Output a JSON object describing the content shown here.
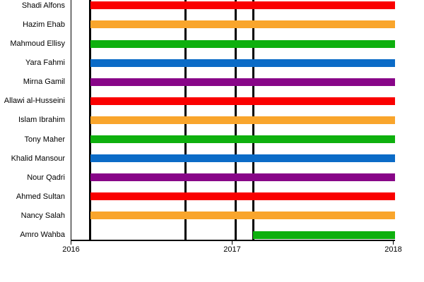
{
  "chart_data": {
    "type": "bar",
    "variant": "horizontal-gantt",
    "title": "",
    "xlabel": "",
    "ylabel": "",
    "grid": "off",
    "legend": "none",
    "x_range": [
      2016,
      2018.02
    ],
    "x_ticks": [
      {
        "value": 2016,
        "label": "2016"
      },
      {
        "value": 2017,
        "label": "2017"
      },
      {
        "value": 2018,
        "label": "2018"
      }
    ],
    "event_lines": [
      2016.12,
      2016.71,
      2017.02,
      2017.13
    ],
    "rows": [
      {
        "label": "Shadi Alfons",
        "color": "red",
        "start": 2016.12,
        "end": 2018.01
      },
      {
        "label": "Hazim Ehab",
        "color": "orange",
        "start": 2016.12,
        "end": 2018.01
      },
      {
        "label": "Mahmoud Ellisy",
        "color": "green",
        "start": 2016.12,
        "end": 2018.01
      },
      {
        "label": "Yara Fahmi",
        "color": "blue",
        "start": 2016.12,
        "end": 2018.01
      },
      {
        "label": "Mirna Gamil",
        "color": "purple",
        "start": 2016.12,
        "end": 2018.01
      },
      {
        "label": "Allawi al-Husseini",
        "color": "red",
        "start": 2016.12,
        "end": 2018.01
      },
      {
        "label": "Islam Ibrahim",
        "color": "orange",
        "start": 2016.12,
        "end": 2018.01
      },
      {
        "label": "Tony Maher",
        "color": "green",
        "start": 2016.12,
        "end": 2018.01
      },
      {
        "label": "Khalid Mansour",
        "color": "blue",
        "start": 2016.12,
        "end": 2018.01
      },
      {
        "label": "Nour Qadri",
        "color": "purple",
        "start": 2016.12,
        "end": 2018.01
      },
      {
        "label": "Ahmed Sultan",
        "color": "red",
        "start": 2016.12,
        "end": 2018.01
      },
      {
        "label": "Nancy Salah",
        "color": "orange",
        "start": 2016.12,
        "end": 2018.01
      },
      {
        "label": "Amro Wahba",
        "color": "green",
        "start": 2017.13,
        "end": 2018.01
      }
    ],
    "palette": {
      "red": "#fa0000",
      "orange": "#f9a52c",
      "green": "#0eb00e",
      "blue": "#0b6bc7",
      "purple": "#880588"
    },
    "axis_color": "#000000"
  }
}
